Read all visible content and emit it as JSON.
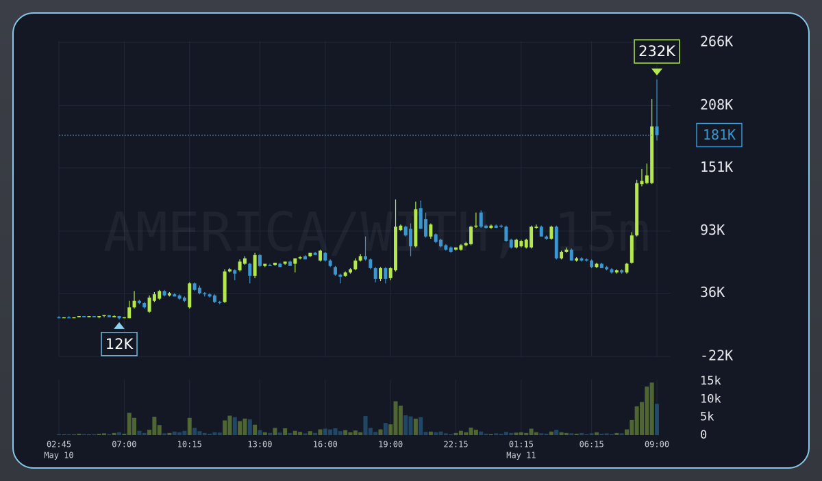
{
  "chart_data": {
    "type": "candlestick",
    "watermark": "AMERICA/WITH, 15m",
    "up_color": "#b4e84c",
    "down_color": "#3b96cf",
    "grid": true,
    "xlim": [
      0,
      119
    ],
    "xticks": [
      {
        "value": 0,
        "label": "02:45"
      },
      {
        "value": 13,
        "label": "07:00"
      },
      {
        "value": 26,
        "label": "10:15"
      },
      {
        "value": 40,
        "label": "13:00"
      },
      {
        "value": 53,
        "label": "16:00"
      },
      {
        "value": 66,
        "label": "19:00"
      },
      {
        "value": 79,
        "label": "22:15"
      },
      {
        "value": 92,
        "label": "01:15"
      },
      {
        "value": 106,
        "label": "06:15"
      },
      {
        "value": 119,
        "label": "09:00"
      }
    ],
    "x_date_labels": [
      {
        "value": 0,
        "label": "May 10"
      },
      {
        "value": 92,
        "label": "May 11"
      }
    ],
    "ylim": [
      -22,
      266
    ],
    "yticks": [
      {
        "value": -22,
        "label": "-22K"
      },
      {
        "value": 36,
        "label": "36K"
      },
      {
        "value": 93,
        "label": "93K"
      },
      {
        "value": 151,
        "label": "151K"
      },
      {
        "value": 208,
        "label": "208K"
      },
      {
        "value": 266,
        "label": "266K"
      }
    ],
    "volume_ylim": [
      0,
      15
    ],
    "volume_yticks": [
      0,
      {
        "value": 5,
        "label": "5k"
      },
      {
        "value": 10,
        "label": "10k"
      },
      {
        "value": 15,
        "label": "15k"
      }
    ],
    "high_label": {
      "value": 232,
      "label": "232K"
    },
    "low_label": {
      "value": 12,
      "label": "12K"
    },
    "last_price": {
      "value": 181,
      "label": "181K"
    },
    "open": [
      14,
      13,
      14,
      13,
      14,
      15,
      14,
      15,
      14,
      15,
      16,
      14,
      15,
      13,
      13,
      23,
      29,
      27,
      19,
      29,
      31,
      38,
      34,
      35,
      34,
      32,
      23,
      45,
      41,
      36,
      35,
      34,
      28,
      28,
      56,
      57,
      57,
      63,
      63,
      52,
      71,
      61,
      62,
      62,
      63,
      63,
      65,
      63,
      68,
      70,
      70,
      73,
      66,
      73,
      66,
      60,
      53,
      52,
      55,
      58,
      66,
      70,
      67,
      59,
      49,
      59,
      50,
      57,
      94,
      97,
      95,
      79,
      114,
      104,
      88,
      90,
      85,
      80,
      78,
      76,
      76,
      80,
      81,
      97,
      110,
      98,
      96,
      98,
      98,
      97,
      85,
      78,
      79,
      78,
      78,
      96,
      97,
      88,
      86,
      97,
      68,
      74,
      76,
      66,
      68,
      67,
      66,
      60,
      63,
      60,
      58,
      55,
      57,
      55,
      64,
      89,
      136,
      137,
      137,
      189
    ],
    "high": [
      15,
      14,
      15,
      14,
      15,
      15,
      15,
      15,
      15,
      16,
      16,
      16,
      15,
      14,
      29,
      38,
      30,
      28,
      34,
      37,
      39,
      39,
      37,
      36,
      35,
      33,
      46,
      46,
      43,
      37,
      36,
      35,
      29,
      58,
      59,
      58,
      67,
      70,
      64,
      73,
      72,
      63,
      63,
      64,
      64,
      65,
      66,
      68,
      70,
      71,
      73,
      74,
      76,
      74,
      67,
      61,
      54,
      56,
      59,
      68,
      72,
      88,
      68,
      60,
      60,
      60,
      60,
      122,
      99,
      98,
      100,
      120,
      121,
      110,
      100,
      91,
      86,
      81,
      79,
      78,
      81,
      83,
      98,
      110,
      112,
      99,
      99,
      99,
      99,
      98,
      86,
      86,
      85,
      86,
      98,
      99,
      98,
      89,
      98,
      98,
      75,
      78,
      77,
      69,
      69,
      68,
      67,
      64,
      64,
      61,
      59,
      58,
      58,
      64,
      92,
      140,
      150,
      155,
      214,
      232
    ],
    "low": [
      13,
      13,
      13,
      13,
      14,
      14,
      14,
      14,
      13,
      14,
      14,
      14,
      12,
      13,
      13,
      22,
      26,
      22,
      18,
      28,
      30,
      33,
      33,
      33,
      30,
      28,
      22,
      38,
      35,
      33,
      32,
      27,
      26,
      27,
      55,
      48,
      56,
      62,
      45,
      50,
      60,
      60,
      61,
      61,
      60,
      62,
      61,
      55,
      67,
      67,
      69,
      71,
      65,
      65,
      60,
      52,
      45,
      51,
      54,
      57,
      65,
      66,
      58,
      46,
      47,
      45,
      48,
      56,
      93,
      88,
      70,
      78,
      95,
      87,
      86,
      82,
      78,
      75,
      73,
      75,
      75,
      79,
      80,
      96,
      96,
      95,
      95,
      96,
      96,
      83,
      77,
      77,
      78,
      77,
      77,
      95,
      88,
      85,
      85,
      67,
      67,
      73,
      66,
      65,
      65,
      65,
      59,
      59,
      59,
      57,
      54,
      54,
      54,
      54,
      63,
      88,
      134,
      136,
      136,
      176
    ],
    "close": [
      13,
      14,
      13,
      14,
      15,
      14,
      15,
      14,
      15,
      16,
      14,
      15,
      13,
      14,
      23,
      29,
      27,
      23,
      32,
      35,
      38,
      34,
      36,
      33,
      31,
      29,
      45,
      39,
      36,
      35,
      33,
      28,
      27,
      56,
      58,
      54,
      65,
      68,
      52,
      71,
      61,
      63,
      61,
      64,
      60,
      65,
      61,
      68,
      69,
      67,
      73,
      71,
      75,
      66,
      61,
      53,
      51,
      55,
      58,
      66,
      70,
      67,
      59,
      49,
      59,
      49,
      59,
      97,
      98,
      89,
      79,
      113,
      95,
      88,
      99,
      83,
      79,
      76,
      74,
      78,
      80,
      82,
      97,
      98,
      97,
      96,
      98,
      96,
      97,
      84,
      78,
      85,
      84,
      85,
      97,
      97,
      88,
      86,
      97,
      68,
      74,
      76,
      66,
      68,
      66,
      66,
      60,
      63,
      59,
      58,
      55,
      57,
      55,
      63,
      89,
      137,
      139,
      144,
      189,
      181
    ],
    "volume": [
      0.3,
      0.2,
      0.3,
      0.2,
      0.4,
      0.3,
      0.2,
      0.3,
      0.4,
      0.5,
      0.3,
      0.6,
      0.8,
      0.4,
      6.2,
      4.8,
      1.2,
      0.6,
      1.5,
      5.1,
      2.8,
      0.5,
      0.6,
      1.0,
      0.8,
      1.2,
      4.8,
      2.0,
      1.1,
      0.6,
      0.4,
      0.8,
      0.7,
      4.1,
      5.4,
      5.0,
      3.9,
      4.6,
      4.4,
      2.9,
      1.4,
      0.8,
      0.6,
      2.0,
      0.7,
      1.9,
      0.6,
      1.2,
      0.9,
      0.5,
      1.1,
      0.6,
      1.6,
      1.8,
      1.6,
      1.9,
      1.1,
      1.4,
      0.8,
      1.3,
      0.8,
      5.3,
      2.0,
      0.9,
      1.6,
      3.4,
      3.0,
      9.4,
      8.2,
      5.5,
      5.2,
      4.6,
      5.0,
      0.9,
      1.0,
      0.8,
      1.0,
      0.5,
      0.3,
      0.6,
      1.2,
      0.8,
      2.1,
      1.5,
      1.0,
      0.4,
      0.3,
      0.5,
      0.4,
      0.9,
      0.6,
      0.7,
      0.8,
      0.6,
      1.8,
      0.8,
      0.5,
      0.4,
      1.0,
      1.5,
      0.8,
      0.6,
      0.5,
      0.4,
      0.6,
      0.3,
      0.5,
      0.8,
      0.4,
      0.5,
      0.3,
      0.6,
      0.5,
      1.6,
      4.2,
      8.0,
      9.2,
      13.5,
      14.6,
      8.7
    ]
  }
}
